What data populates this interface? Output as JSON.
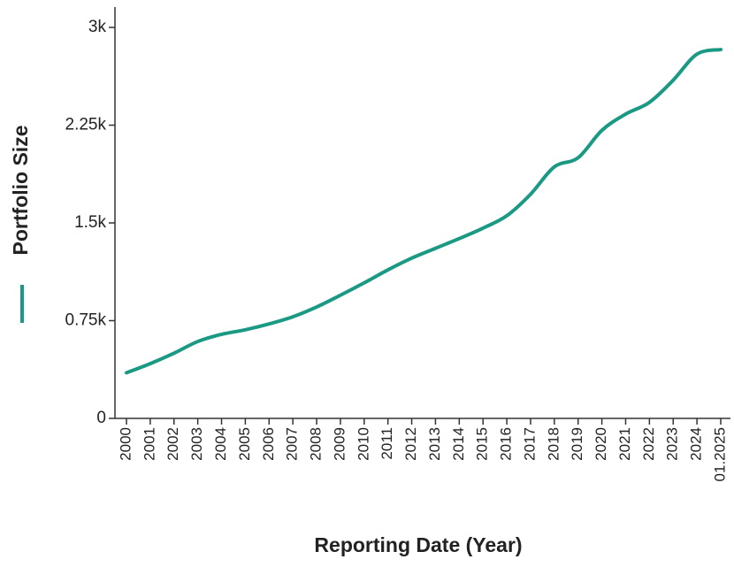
{
  "chart_data": {
    "type": "line",
    "ylabel": "Portfolio Size",
    "xlabel": "Reporting Date (Year)",
    "categories": [
      "2000",
      "2001",
      "2002",
      "2003",
      "2004",
      "2005",
      "2006",
      "2007",
      "2008",
      "2009",
      "2010",
      "2011",
      "2012",
      "2013",
      "2014",
      "2015",
      "2016",
      "2017",
      "2018",
      "2019",
      "2020",
      "2021",
      "2022",
      "2023",
      "2024",
      "01.2025"
    ],
    "values": [
      350,
      420,
      500,
      590,
      645,
      680,
      725,
      780,
      855,
      945,
      1040,
      1140,
      1230,
      1305,
      1380,
      1460,
      1555,
      1720,
      1930,
      2000,
      2210,
      2335,
      2425,
      2595,
      2795,
      2830
    ],
    "color": "#1a9985",
    "ylim": [
      0,
      3000
    ],
    "yticks": [
      0,
      {
        "value": 750,
        "label": "0.75k"
      },
      {
        "value": 1500,
        "label": "1.5k"
      },
      {
        "value": 2250,
        "label": "2.25k"
      },
      {
        "value": 3000,
        "label": "3k"
      }
    ]
  }
}
